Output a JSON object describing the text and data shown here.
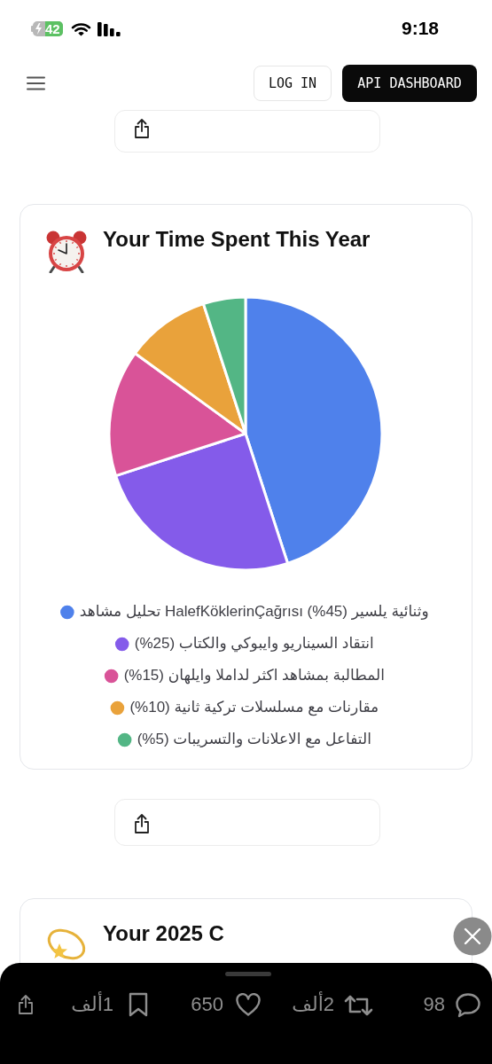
{
  "chart_data": {
    "type": "pie",
    "title": "Your Time Spent This Year",
    "categories": [
      "تحليل مشاهد HalefKöklerinÇağrısı وثنائية يلسير (45%)",
      "انتقاد السيناريو وايبوكي والكتاب (25%)",
      "المطالبة بمشاهد اكثر لداملا وايلهان (15%)",
      "مقارنات مع مسلسلات تركية ثانية (10%)",
      "التفاعل مع الاعلانات والتسريبات (5%)"
    ],
    "values": [
      45,
      25,
      15,
      10,
      5
    ],
    "colors": [
      "#4f81eb",
      "#845bea",
      "#d95398",
      "#e9a23b",
      "#53b685"
    ],
    "legend": "bottom",
    "annotations": [
      "9:18",
      "42",
      "LOG IN",
      "API DASHBOARD",
      "Your 2025 C",
      "1ألف",
      "650",
      "2ألف",
      "98"
    ]
  }
}
